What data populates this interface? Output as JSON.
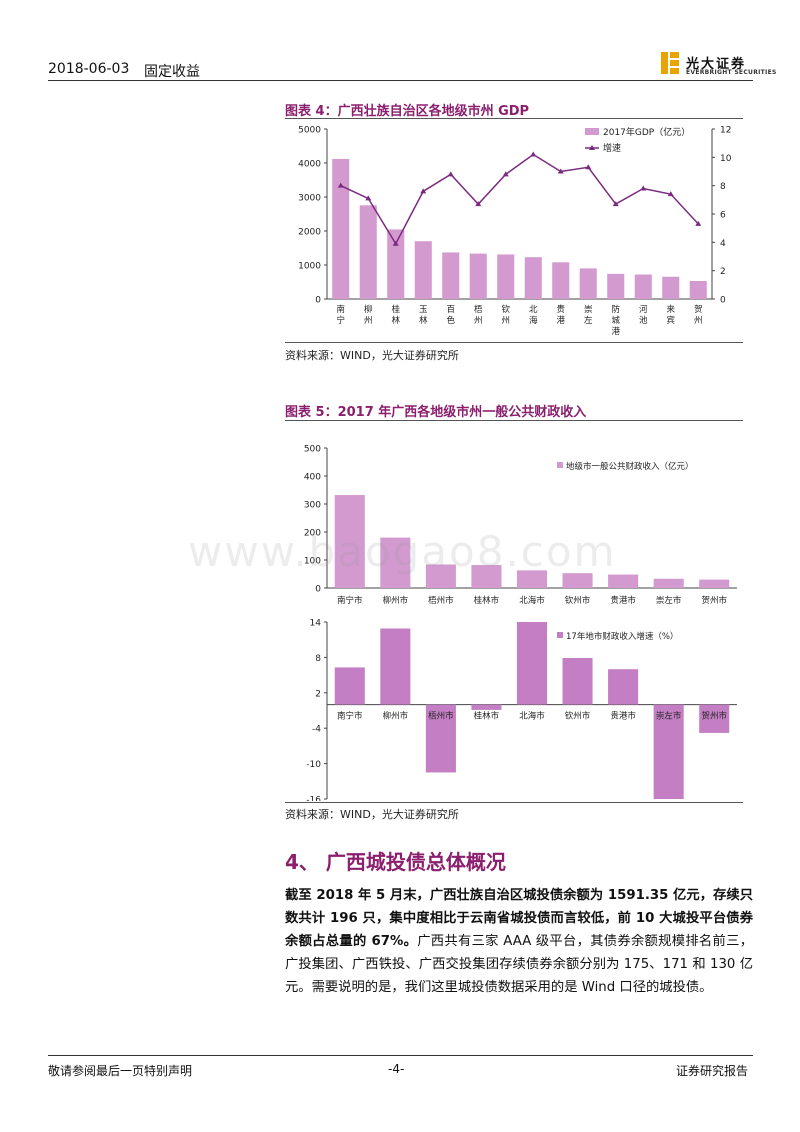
{
  "header": {
    "date": "2018-06-03",
    "category": "固定收益",
    "logo_cn": "光大证券",
    "logo_en": "EVERBRIGHT SECURITIES"
  },
  "figure4": {
    "title": "图表 4：广西壮族自治区各地级市州 GDP",
    "source": "资料来源：WIND，光大证券研究所"
  },
  "figure5": {
    "title": "图表 5：2017 年广西各地级市州一般公共财政收入",
    "source": "资料来源：WIND，光大证券研究所"
  },
  "section": {
    "heading": "4、 广西城投债总体概况",
    "para_bold": "截至 2018 年 5 月末，广西壮族自治区城投债余额为 1591.35 亿元，存续只数共计 196 只，集中度相比于云南省城投债而言较低，前 10 大城投平台债券余额占总量的 67%。",
    "para_rest": "广西共有三家 AAA 级平台，其债券余额规模排名前三，广投集团、广西铁投、广西交投集团存续债券余额分别为 175、171 和 130 亿元。需要说明的是，我们这里城投债数据采用的是 Wind 口径的城投债。"
  },
  "footer": {
    "left": "敬请参阅最后一页特别声明",
    "center": "-4-",
    "right": "证券研究报告"
  },
  "watermark": "www.baogao8.com",
  "colors": {
    "bar": "#d39ad0",
    "bar2": "#c47fc4",
    "line": "#7b2a7f",
    "title": "#8b1f6e"
  },
  "chart_data": [
    {
      "type": "bar",
      "categories": [
        "南宁",
        "柳州",
        "桂林",
        "玉林",
        "百色",
        "梧州",
        "钦州",
        "北海",
        "贵港",
        "崇左",
        "防城港",
        "河池",
        "来宾",
        "贺州"
      ],
      "series": [
        {
          "name": "2017年GDP（亿元）",
          "type": "bar",
          "axis": "left",
          "values": [
            4119,
            2755,
            2046,
            1700,
            1370,
            1335,
            1310,
            1230,
            1080,
            900,
            740,
            720,
            655,
            530
          ]
        },
        {
          "name": "增速",
          "type": "line",
          "axis": "right",
          "values": [
            8.0,
            7.1,
            3.9,
            7.6,
            8.8,
            6.7,
            8.8,
            10.2,
            9.0,
            9.3,
            6.7,
            7.8,
            7.4,
            5.3
          ]
        }
      ],
      "ylim_left": [
        0,
        5000
      ],
      "yticks_left": [
        "0",
        "1000",
        "2000",
        "3000",
        "4000",
        "5000"
      ],
      "ylim_right": [
        0,
        12
      ],
      "yticks_right": [
        "0",
        "2",
        "4",
        "6",
        "8",
        "10",
        "12"
      ],
      "legend": "top-right"
    },
    {
      "type": "bar",
      "categories": [
        "南宁市",
        "柳州市",
        "梧州市",
        "桂林市",
        "北海市",
        "钦州市",
        "贵港市",
        "崇左市",
        "贺州市"
      ],
      "series": [
        {
          "name": "地级市一般公共财政收入（亿元）",
          "values": [
            332,
            180,
            84,
            82,
            63,
            53,
            48,
            33,
            30
          ]
        }
      ],
      "ylim": [
        0,
        500
      ],
      "yticks": [
        "0",
        "100",
        "200",
        "300",
        "400",
        "500"
      ],
      "legend": "top-right"
    },
    {
      "type": "bar",
      "categories": [
        "南宁市",
        "柳州市",
        "梧州市",
        "桂林市",
        "北海市",
        "钦州市",
        "贵港市",
        "崇左市",
        "贺州市"
      ],
      "series": [
        {
          "name": "17年地市财政收入增速（%）",
          "values": [
            6.3,
            12.9,
            -11.5,
            -0.9,
            14.0,
            7.9,
            6.0,
            -16.0,
            -4.8
          ]
        }
      ],
      "ylim": [
        -16,
        14
      ],
      "yticks": [
        "14",
        "8",
        "2",
        "-4",
        "-10",
        "-16"
      ],
      "legend": "top-right"
    }
  ]
}
